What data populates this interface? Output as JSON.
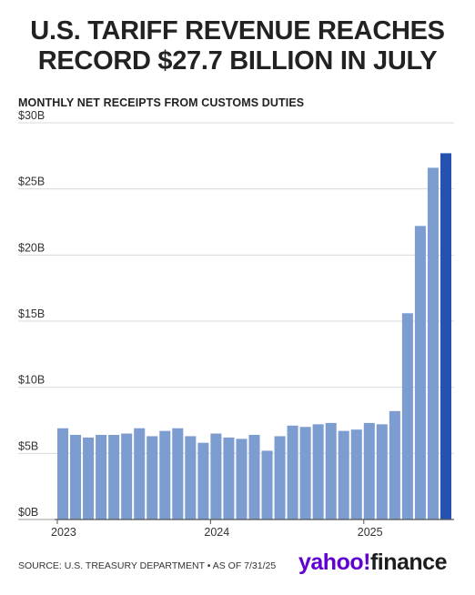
{
  "headline": {
    "line1": "U.S. TARIFF REVENUE REACHES",
    "line2": "RECORD $27.7 BILLION IN JULY"
  },
  "chart_data": {
    "type": "bar",
    "title": "MONTHLY NET RECEIPTS FROM CUSTOMS DUTIES",
    "xlabel": "",
    "ylabel": "",
    "ylim": [
      0,
      30
    ],
    "y_ticks": [
      "$0B",
      "$5B",
      "$10B",
      "$15B",
      "$20B",
      "$25B",
      "$30B"
    ],
    "x_tick_labels": [
      "2023",
      "2024",
      "2025"
    ],
    "x_tick_bar_index": [
      0,
      12,
      24
    ],
    "grid": "horizontal",
    "colors": {
      "bar": "#7d9ccf",
      "highlight": "#2552b0",
      "grid": "#d9d9d9"
    },
    "values": [
      6.9,
      6.4,
      6.2,
      6.4,
      6.4,
      6.5,
      6.9,
      6.3,
      6.7,
      6.9,
      6.3,
      5.8,
      6.5,
      6.2,
      6.1,
      6.4,
      5.2,
      6.3,
      7.1,
      7.0,
      7.2,
      7.3,
      6.7,
      6.8,
      7.3,
      7.2,
      8.2,
      15.6,
      22.2,
      26.6,
      27.7
    ],
    "highlight_index": 30
  },
  "footer": {
    "source": "SOURCE: U.S. TREASURY DEPARTMENT • AS OF 7/31/25",
    "logo_yahoo": "yahoo!",
    "logo_finance": "finance"
  }
}
